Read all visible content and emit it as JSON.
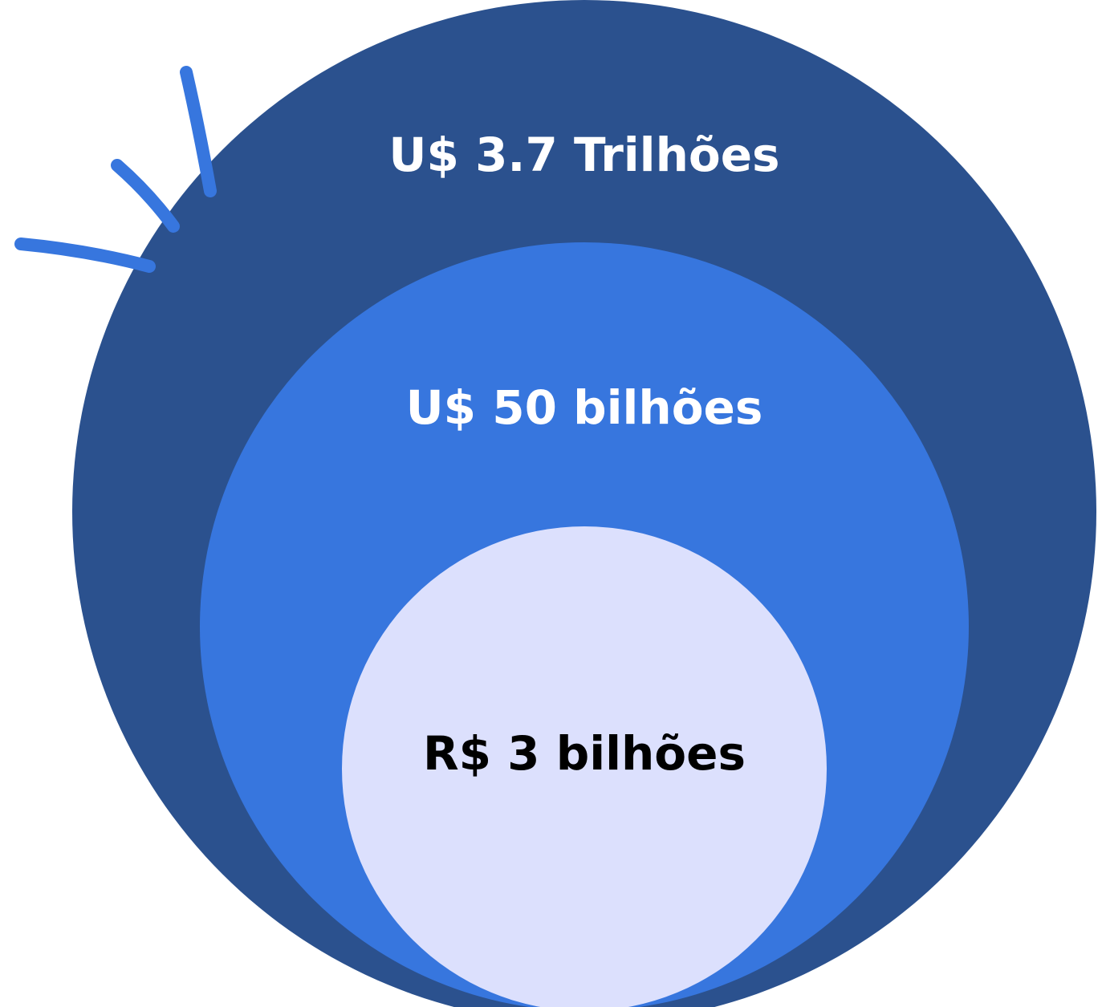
{
  "circles": [
    {
      "label": "U$ 3.7 Trilhões"
    },
    {
      "label": "U$ 50 bilhões"
    },
    {
      "label": "R$ 3 bilhões"
    }
  ]
}
